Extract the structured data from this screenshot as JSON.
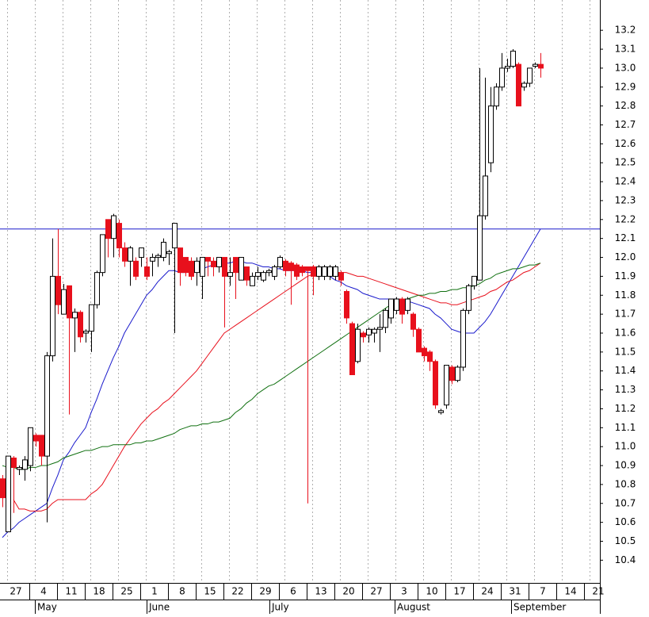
{
  "chart_data": {
    "type": "candlestick",
    "ylim": [
      10.28,
      13.36
    ],
    "yticks": [
      10.4,
      10.5,
      10.6,
      10.7,
      10.8,
      10.9,
      {
        "value": 11,
        "label": "11.0"
      },
      11.1,
      11.2,
      11.3,
      11.4,
      11.5,
      11.6,
      11.7,
      11.8,
      11.9,
      {
        "value": 12,
        "label": "12.0"
      },
      12.1,
      12.2,
      12.3,
      12.4,
      12.5,
      12.6,
      12.7,
      12.8,
      12.9,
      {
        "value": 13,
        "label": "13.0"
      },
      13.1,
      13.2
    ],
    "week_labels": [
      "27",
      "4",
      "11",
      "18",
      "25",
      "1",
      "8",
      "15",
      "22",
      "29",
      "6",
      "13",
      "20",
      "27",
      "3",
      "10",
      "17",
      "24",
      "31",
      "7",
      "14",
      "21"
    ],
    "month_labels": [
      "May",
      "June",
      "July",
      "August",
      "September"
    ],
    "up_color": "#ffffff",
    "down_color": "#e8101c",
    "hline": {
      "value": 12.15,
      "color": "#1a1acc"
    },
    "open": [
      10.83,
      10.55,
      10.94,
      10.88,
      10.88,
      10.9,
      11.06,
      11.06,
      10.95,
      11.48,
      11.9,
      11.7,
      11.85,
      11.68,
      11.71,
      11.6,
      11.61,
      11.75,
      11.92,
      12.2,
      12.1,
      12.18,
      12.05,
      11.98,
      11.98,
      12.0,
      11.95,
      11.98,
      12.0,
      12.0,
      12.02,
      12.05,
      12.05,
      12.0,
      11.98,
      11.92,
      11.9,
      12.0,
      11.98,
      11.95,
      12.0,
      11.9,
      12.0,
      11.88,
      11.95,
      11.85,
      11.9,
      11.88,
      11.92,
      11.9,
      11.95,
      11.98,
      11.97,
      11.96,
      11.95,
      11.95,
      11.95,
      11.9,
      11.9,
      11.9,
      11.9,
      11.92,
      11.82,
      11.65,
      11.45,
      11.6,
      11.59,
      11.6,
      11.62,
      11.63,
      11.68,
      11.72,
      11.78,
      11.72,
      11.7,
      11.62,
      11.52,
      11.5,
      11.45,
      11.18,
      11.22,
      11.42,
      11.35,
      11.42,
      11.72,
      11.85,
      11.88,
      12.22,
      12.5,
      12.8,
      12.9,
      13.0,
      13.01,
      13.02,
      12.9,
      12.92,
      13.01,
      13.02
    ],
    "high": [
      10.85,
      10.95,
      10.95,
      10.9,
      10.95,
      11.1,
      11.07,
      11.06,
      11.5,
      12.1,
      12.15,
      11.86,
      11.85,
      11.73,
      11.72,
      11.62,
      11.75,
      11.93,
      12.12,
      12.2,
      12.23,
      12.2,
      12.08,
      12.06,
      12.0,
      12.05,
      12.0,
      12.02,
      12.02,
      12.1,
      12.04,
      12.18,
      12.05,
      12.0,
      12.0,
      12.0,
      12.0,
      12.0,
      12.0,
      12.0,
      12.0,
      12.0,
      12.0,
      12.0,
      11.95,
      11.92,
      11.95,
      11.93,
      11.94,
      11.96,
      12.01,
      11.99,
      11.98,
      11.97,
      11.96,
      11.95,
      11.96,
      11.96,
      11.96,
      11.96,
      11.96,
      11.93,
      11.83,
      11.66,
      11.65,
      11.61,
      11.63,
      11.63,
      11.7,
      11.73,
      11.78,
      11.79,
      11.79,
      11.79,
      11.71,
      11.63,
      11.53,
      11.51,
      11.46,
      11.2,
      11.43,
      11.43,
      11.43,
      11.73,
      11.86,
      11.9,
      13.0,
      12.95,
      12.9,
      12.92,
      13.08,
      13.05,
      13.1,
      13.03,
      12.93,
      13.0,
      13.03,
      13.08
    ],
    "low": [
      10.68,
      10.55,
      10.65,
      10.85,
      10.82,
      10.87,
      11.0,
      10.9,
      10.6,
      11.45,
      11.7,
      11.7,
      11.17,
      11.5,
      11.55,
      11.55,
      11.5,
      11.73,
      11.9,
      12.0,
      12.0,
      12.0,
      11.95,
      11.85,
      11.88,
      11.95,
      11.88,
      11.9,
      11.95,
      11.98,
      11.96,
      11.6,
      11.85,
      11.9,
      11.88,
      11.85,
      11.78,
      11.9,
      11.9,
      11.92,
      11.63,
      11.85,
      11.78,
      11.88,
      11.85,
      11.85,
      11.88,
      11.87,
      11.9,
      11.88,
      11.94,
      11.9,
      11.75,
      11.88,
      11.9,
      10.7,
      11.8,
      11.88,
      11.88,
      11.88,
      11.88,
      11.85,
      11.65,
      11.38,
      11.44,
      11.55,
      11.55,
      11.55,
      11.5,
      11.6,
      11.65,
      11.7,
      11.65,
      11.7,
      11.58,
      11.5,
      11.45,
      11.4,
      11.2,
      11.17,
      11.2,
      11.33,
      11.34,
      11.4,
      11.7,
      11.83,
      11.88,
      12.2,
      12.45,
      12.78,
      12.88,
      12.98,
      13.0,
      12.8,
      12.88,
      12.9,
      13.0,
      12.95
    ],
    "close": [
      10.73,
      10.95,
      10.89,
      10.89,
      10.93,
      11.1,
      11.03,
      10.95,
      11.48,
      11.9,
      11.75,
      11.83,
      11.68,
      11.71,
      11.58,
      11.61,
      11.75,
      11.92,
      12.12,
      12.1,
      12.22,
      12.05,
      11.98,
      12.05,
      11.9,
      12.05,
      11.9,
      12.0,
      12.01,
      12.08,
      12.03,
      12.18,
      11.92,
      11.92,
      11.9,
      11.98,
      12.0,
      11.98,
      11.95,
      12.0,
      11.9,
      11.92,
      11.92,
      12.0,
      11.88,
      11.9,
      11.92,
      11.92,
      11.93,
      11.95,
      12.0,
      11.93,
      11.93,
      11.9,
      11.92,
      11.93,
      11.9,
      11.95,
      11.95,
      11.95,
      11.95,
      11.88,
      11.68,
      11.38,
      11.62,
      11.58,
      11.62,
      11.62,
      11.63,
      11.72,
      11.78,
      11.78,
      11.7,
      11.78,
      11.62,
      11.5,
      11.48,
      11.45,
      11.22,
      11.19,
      11.43,
      11.35,
      11.42,
      11.72,
      11.85,
      11.9,
      12.22,
      12.43,
      12.8,
      12.9,
      13.0,
      13.01,
      13.09,
      12.8,
      12.92,
      13.0,
      13.02,
      13.0
    ],
    "series": [
      {
        "color": "#1a1acc",
        "values": [
          10.52,
          10.55,
          10.57,
          10.6,
          10.62,
          10.64,
          10.66,
          10.68,
          10.7,
          10.78,
          10.85,
          10.93,
          10.97,
          11.02,
          11.06,
          11.1,
          11.18,
          11.25,
          11.33,
          11.4,
          11.47,
          11.53,
          11.6,
          11.65,
          11.7,
          11.75,
          11.8,
          11.83,
          11.87,
          11.9,
          11.93,
          11.93,
          11.92,
          11.92,
          11.93,
          11.94,
          11.94,
          11.95,
          11.96,
          11.96,
          11.97,
          11.97,
          11.98,
          11.98,
          11.97,
          11.97,
          11.96,
          11.95,
          11.95,
          11.94,
          11.94,
          11.93,
          11.93,
          11.93,
          11.93,
          11.92,
          11.92,
          11.92,
          11.92,
          11.9,
          11.88,
          11.87,
          11.85,
          11.84,
          11.83,
          11.81,
          11.8,
          11.79,
          11.78,
          11.78,
          11.78,
          11.78,
          11.78,
          11.77,
          11.76,
          11.75,
          11.74,
          11.73,
          11.7,
          11.68,
          11.65,
          11.62,
          11.61,
          11.6,
          11.6,
          11.6,
          11.63,
          11.66,
          11.7,
          11.75,
          11.8,
          11.85,
          11.9,
          11.95,
          12.0,
          12.05,
          12.1,
          12.15
        ]
      },
      {
        "color": "#e8101c",
        "values": [
          null,
          null,
          10.72,
          10.67,
          10.67,
          10.66,
          10.66,
          10.66,
          10.67,
          10.7,
          10.72,
          10.72,
          10.72,
          10.72,
          10.72,
          10.72,
          10.75,
          10.77,
          10.8,
          10.85,
          10.9,
          10.95,
          11.0,
          11.04,
          11.08,
          11.12,
          11.15,
          11.18,
          11.2,
          11.23,
          11.25,
          11.28,
          11.31,
          11.34,
          11.37,
          11.4,
          11.44,
          11.48,
          11.52,
          11.56,
          11.6,
          11.62,
          11.64,
          11.66,
          11.68,
          11.7,
          11.72,
          11.74,
          11.76,
          11.78,
          11.8,
          11.82,
          11.84,
          11.86,
          11.88,
          11.9,
          11.91,
          11.91,
          11.92,
          11.92,
          11.92,
          11.92,
          11.92,
          11.91,
          11.9,
          11.9,
          11.89,
          11.88,
          11.87,
          11.86,
          11.85,
          11.84,
          11.83,
          11.82,
          11.81,
          11.8,
          11.79,
          11.78,
          11.77,
          11.76,
          11.76,
          11.75,
          11.75,
          11.76,
          11.77,
          11.78,
          11.79,
          11.8,
          11.82,
          11.83,
          11.85,
          11.87,
          11.88,
          11.9,
          11.92,
          11.93,
          11.95,
          11.97
        ]
      },
      {
        "color": "#107010",
        "values": [
          10.9,
          10.89,
          10.89,
          10.88,
          10.88,
          10.89,
          10.89,
          10.9,
          10.9,
          10.91,
          10.92,
          10.94,
          10.95,
          10.96,
          10.97,
          10.98,
          10.98,
          10.99,
          11.0,
          11.0,
          11.01,
          11.01,
          11.01,
          11.01,
          11.02,
          11.02,
          11.03,
          11.03,
          11.04,
          11.05,
          11.06,
          11.07,
          11.09,
          11.1,
          11.11,
          11.11,
          11.12,
          11.12,
          11.13,
          11.13,
          11.14,
          11.15,
          11.18,
          11.2,
          11.23,
          11.25,
          11.28,
          11.3,
          11.32,
          11.33,
          11.35,
          11.37,
          11.39,
          11.41,
          11.43,
          11.45,
          11.47,
          11.49,
          11.51,
          11.53,
          11.55,
          11.57,
          11.59,
          11.61,
          11.63,
          11.65,
          11.67,
          11.69,
          11.71,
          11.73,
          11.75,
          11.76,
          11.77,
          11.78,
          11.79,
          11.8,
          11.8,
          11.81,
          11.81,
          11.82,
          11.82,
          11.83,
          11.83,
          11.84,
          11.84,
          11.85,
          11.86,
          11.88,
          11.89,
          11.91,
          11.92,
          11.93,
          11.94,
          11.94,
          11.95,
          11.96,
          11.96,
          11.97
        ]
      }
    ]
  }
}
